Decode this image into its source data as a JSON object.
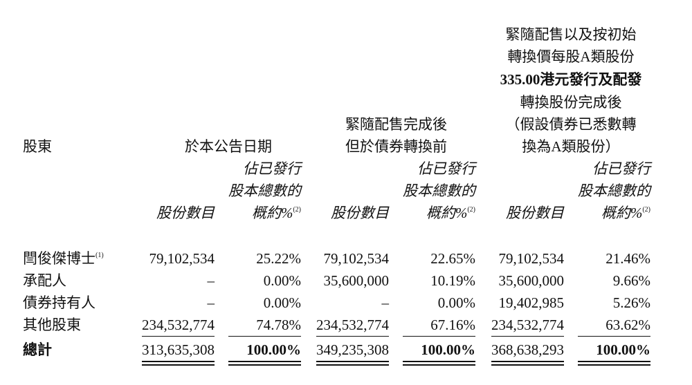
{
  "table": {
    "header": {
      "shareholder": "股東",
      "group1_title": "於本公告日期",
      "group2_title": [
        "緊隨配售完成後",
        "但於債券轉換前"
      ],
      "group3_title": [
        "緊隨配售以及按初始",
        "轉換價每股A類股份",
        "335.00港元發行及配發",
        "轉換股份完成後",
        "（假設債券已悉數轉",
        "換為A類股份）"
      ],
      "pct_header": [
        "佔已發行",
        "股本總數的",
        "概約%"
      ],
      "pct_note": "(2)",
      "shares_header": "股份數目"
    },
    "rows": [
      {
        "name": "閆俊傑博士",
        "note": "(1)",
        "c1": "79,102,534",
        "p1": "25.22%",
        "c2": "79,102,534",
        "p2": "22.65%",
        "c3": "79,102,534",
        "p3": "21.46%"
      },
      {
        "name": "承配人",
        "note": "",
        "c1": "–",
        "p1": "0.00%",
        "c2": "35,600,000",
        "p2": "10.19%",
        "c3": "35,600,000",
        "p3": "9.66%"
      },
      {
        "name": "債券持有人",
        "note": "",
        "c1": "–",
        "p1": "0.00%",
        "c2": "–",
        "p2": "0.00%",
        "c3": "19,402,985",
        "p3": "5.26%"
      },
      {
        "name": "其他股東",
        "note": "",
        "c1": "234,532,774",
        "p1": "74.78%",
        "c2": "234,532,774",
        "p2": "67.16%",
        "c3": "234,532,774",
        "p3": "63.62%"
      }
    ],
    "total": {
      "name": "總計",
      "c1": "313,635,308",
      "p1": "100.00%",
      "c2": "349,235,308",
      "p2": "100.00%",
      "c3": "368,638,293",
      "p3": "100.00%"
    }
  }
}
